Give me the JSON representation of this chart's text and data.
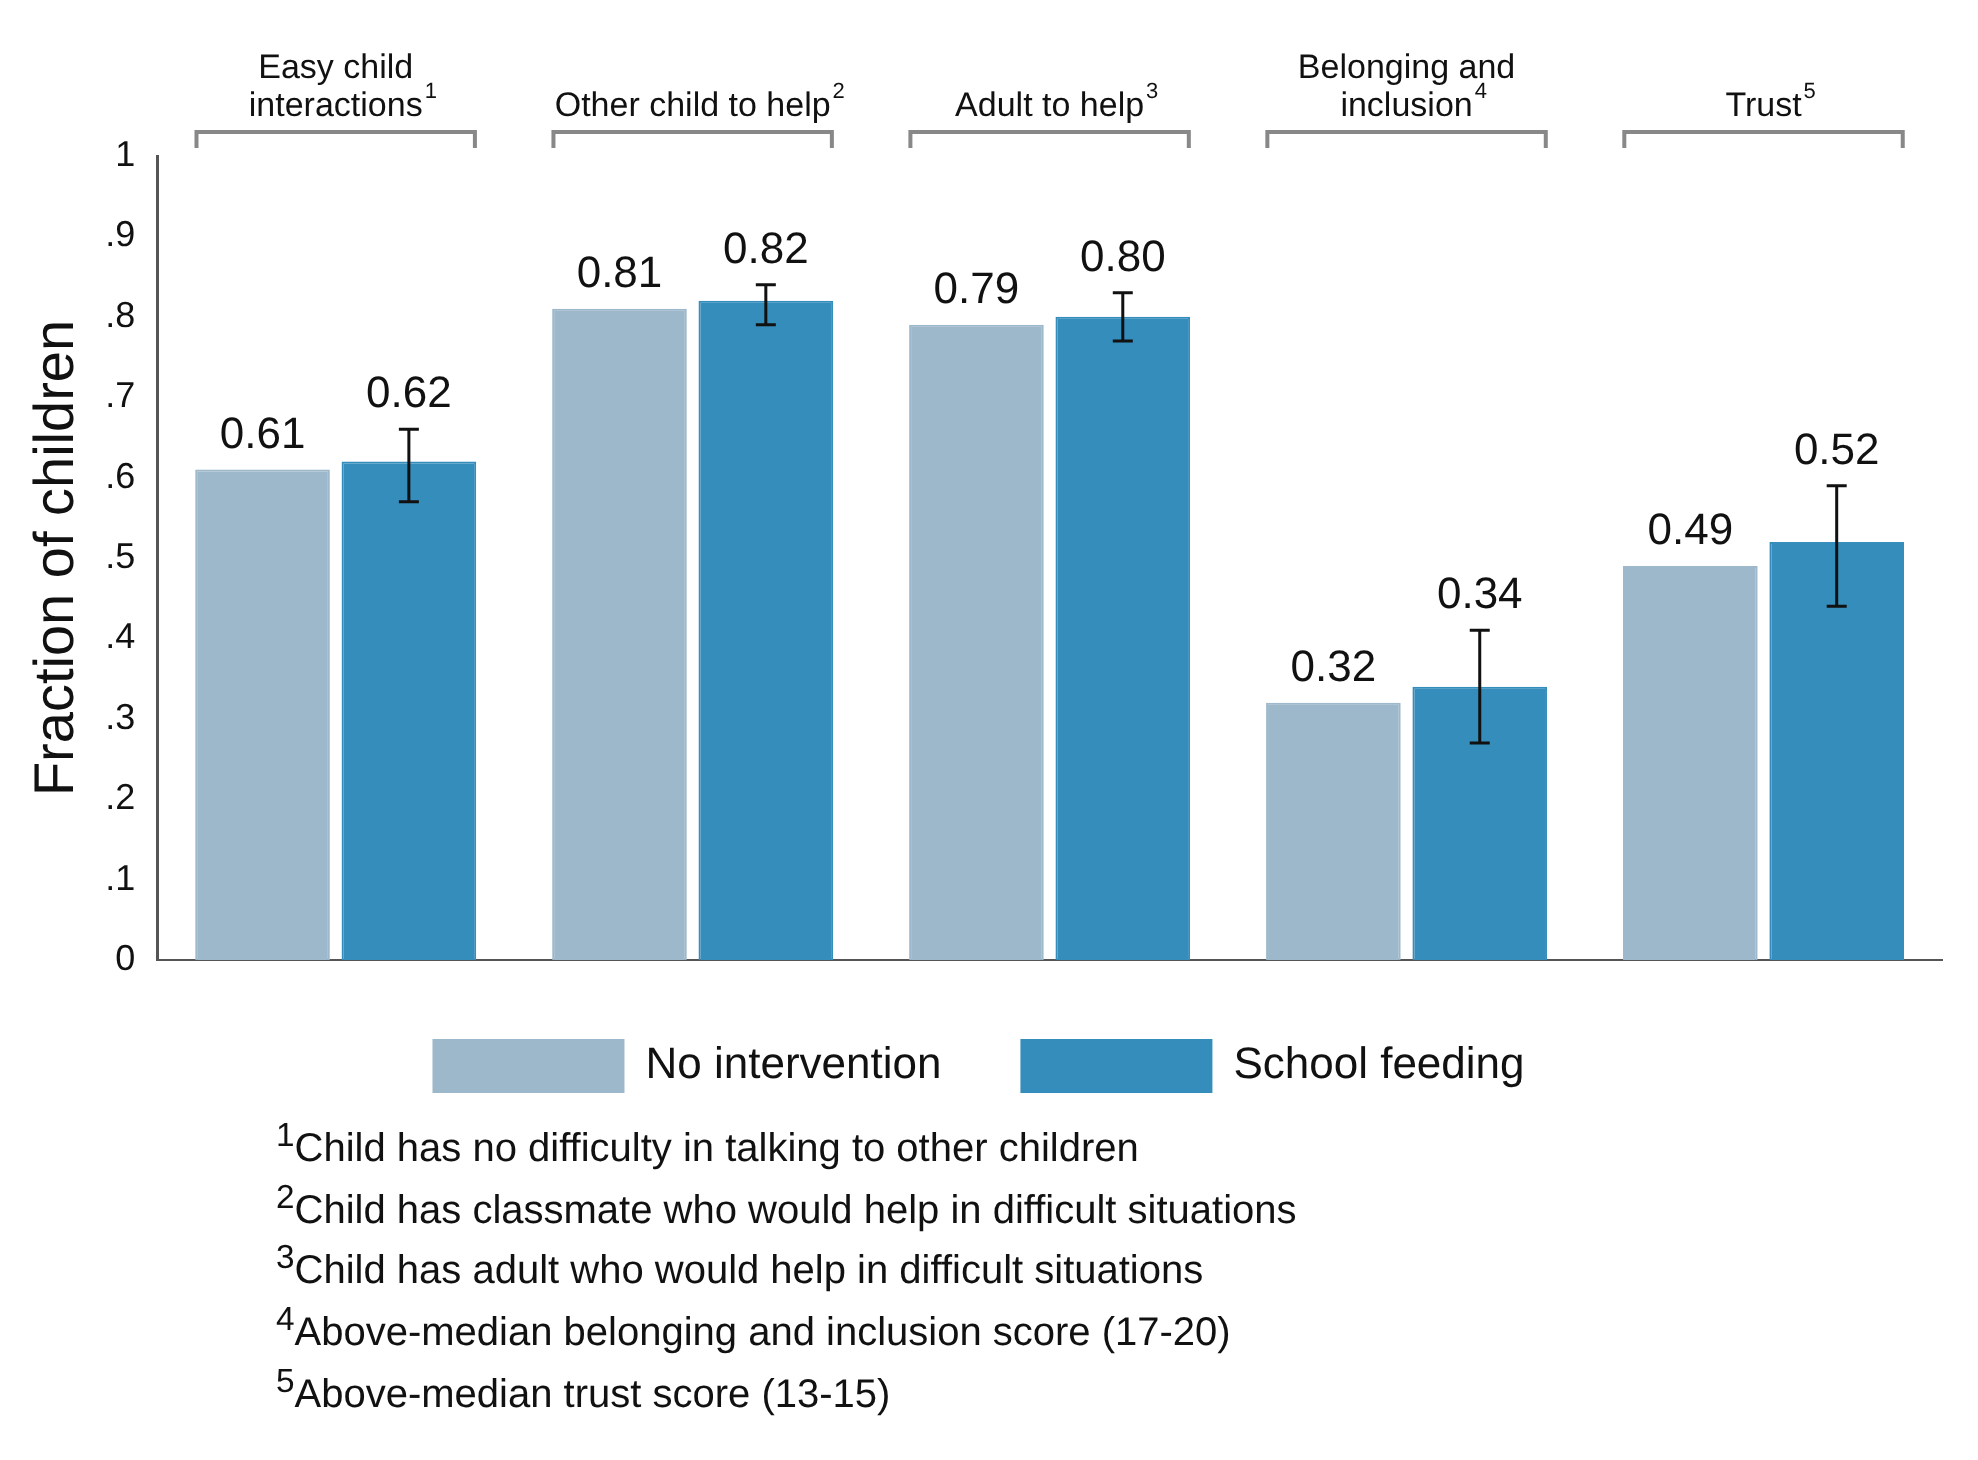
{
  "chart_data": {
    "type": "bar",
    "ylabel": "Fraction of children",
    "categories": [
      "Easy child interactions$^{1}$",
      "Other child to help$^{2}$",
      "Adult to help$^{3}$",
      "Belonging and inclusion$^{4}$",
      "Trust$^{5}$"
    ],
    "series": [
      {
        "name": "No intervention",
        "color": "#9db8ca",
        "values": [
          0.61,
          0.81,
          0.79,
          0.32,
          0.49
        ],
        "value_labels": [
          "0.61",
          "0.81",
          "0.79",
          "0.32",
          "0.49"
        ]
      },
      {
        "name": "School feeding",
        "color": "#358dbc",
        "values": [
          0.62,
          0.82,
          0.8,
          0.34,
          0.52
        ],
        "value_labels": [
          "0.62",
          "0.82",
          "0.80",
          "0.34",
          "0.52"
        ],
        "errors": [
          [
            0.57,
            0.66
          ],
          [
            0.79,
            0.84
          ],
          [
            0.77,
            0.83
          ],
          [
            0.27,
            0.41
          ],
          [
            0.44,
            0.59
          ]
        ]
      }
    ],
    "ylim": [
      0,
      1
    ],
    "yticks": [
      0,
      {
        "value": 0.1,
        "label": ".1"
      },
      {
        "value": 0.2,
        "label": ".2"
      },
      {
        "value": 0.3,
        "label": ".3"
      },
      {
        "value": 0.4,
        "label": ".4"
      },
      {
        "value": 0.5,
        "label": ".5"
      },
      {
        "value": 0.6,
        "label": ".6"
      },
      {
        "value": 0.7,
        "label": ".7"
      },
      {
        "value": 0.8,
        "label": ".8"
      },
      {
        "value": 0.9,
        "label": ".9"
      },
      1
    ],
    "grid": false,
    "legend": "bottom",
    "annotations": [
      "$^{1}$Child has no difficulty in talking to other children",
      "$^{2}$Child has classmate who would help in difficult situations",
      "$^{3}$Child has adult who would help in difficult situations",
      "$^{4}$Above-median belonging and inclusion score (17-20)",
      "$^{5}$Above-median trust score (13-15)"
    ]
  }
}
